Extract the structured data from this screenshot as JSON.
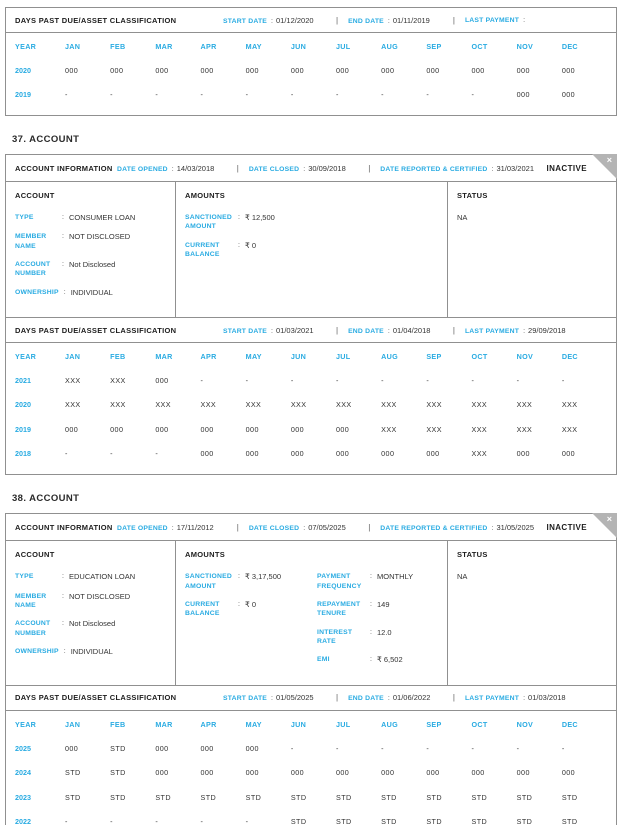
{
  "colors": {
    "accent": "#29abe2",
    "heading_text": "#1d1d1d",
    "value_text": "#333333",
    "border": "#909090",
    "corner_fold": "#b4b4b4"
  },
  "labels": {
    "dpd_title": "DAYS PAST DUE/ASSET CLASSIFICATION",
    "start_date": "START DATE",
    "end_date": "END DATE",
    "last_payment": "LAST PAYMENT",
    "account_information": "ACCOUNT INFORMATION",
    "date_opened": "DATE OPENED",
    "date_closed": "DATE CLOSED",
    "date_reported": "DATE REPORTED & CERTIFIED",
    "account": "ACCOUNT",
    "amounts": "AMOUNTS",
    "status": "STATUS",
    "type": "TYPE",
    "member_name": "MEMBER NAME",
    "account_number": "ACCOUNT NUMBER",
    "ownership": "OWNERSHIP",
    "sanctioned_amount": "SANCTIONED AMOUNT",
    "current_balance": "CURRENT BALANCE",
    "payment_frequency": "PAYMENT FREQUENCY",
    "repayment_tenure": "REPAYMENT TENURE",
    "interest_rate": "INTEREST RATE",
    "emi": "EMI",
    "year": "YEAR",
    "months": [
      "JAN",
      "FEB",
      "MAR",
      "APR",
      "MAY",
      "JUN",
      "JUL",
      "AUG",
      "SEP",
      "OCT",
      "NOV",
      "DEC"
    ],
    "colon": ":",
    "pipe": "|",
    "close": "×"
  },
  "top_dpd": {
    "start_date": "01/12/2020",
    "end_date": "01/11/2019",
    "last_payment": "",
    "rows": [
      {
        "year": "2020",
        "values": [
          "000",
          "000",
          "000",
          "000",
          "000",
          "000",
          "000",
          "000",
          "000",
          "000",
          "000",
          "000"
        ]
      },
      {
        "year": "2019",
        "values": [
          "-",
          "-",
          "-",
          "-",
          "-",
          "-",
          "-",
          "-",
          "-",
          "-",
          "000",
          "000"
        ]
      }
    ]
  },
  "accounts": [
    {
      "heading": "37. ACCOUNT",
      "badge": "INACTIVE",
      "info": {
        "date_opened": "14/03/2018",
        "date_closed": "30/09/2018",
        "date_reported": "31/03/2021"
      },
      "account": {
        "type": "CONSUMER LOAN",
        "member_name": "NOT DISCLOSED",
        "account_number": "Not Disclosed",
        "ownership": "INDIVIDUAL"
      },
      "amounts": {
        "sanctioned_amount": "₹ 12,500",
        "current_balance": "₹ 0"
      },
      "status": "NA",
      "dpd": {
        "start_date": "01/03/2021",
        "end_date": "01/04/2018",
        "last_payment": "29/09/2018",
        "rows": [
          {
            "year": "2021",
            "values": [
              "XXX",
              "XXX",
              "000",
              "-",
              "-",
              "-",
              "-",
              "-",
              "-",
              "-",
              "-",
              "-"
            ]
          },
          {
            "year": "2020",
            "values": [
              "XXX",
              "XXX",
              "XXX",
              "XXX",
              "XXX",
              "XXX",
              "XXX",
              "XXX",
              "XXX",
              "XXX",
              "XXX",
              "XXX"
            ]
          },
          {
            "year": "2019",
            "values": [
              "000",
              "000",
              "000",
              "000",
              "000",
              "000",
              "000",
              "XXX",
              "XXX",
              "XXX",
              "XXX",
              "XXX"
            ]
          },
          {
            "year": "2018",
            "values": [
              "-",
              "-",
              "-",
              "000",
              "000",
              "000",
              "000",
              "000",
              "000",
              "XXX",
              "000",
              "000"
            ]
          }
        ]
      }
    },
    {
      "heading": "38. ACCOUNT",
      "badge": "INACTIVE",
      "info": {
        "date_opened": "17/11/2012",
        "date_closed": "07/05/2025",
        "date_reported": "31/05/2025"
      },
      "account": {
        "type": "EDUCATION LOAN",
        "member_name": "NOT DISCLOSED",
        "account_number": "Not Disclosed",
        "ownership": "INDIVIDUAL"
      },
      "amounts": {
        "sanctioned_amount": "₹ 3,17,500",
        "current_balance": "₹ 0",
        "payment_frequency": "MONTHLY",
        "repayment_tenure": "149",
        "interest_rate": "12.0",
        "emi": "₹ 6,502"
      },
      "status": "NA",
      "dpd": {
        "start_date": "01/05/2025",
        "end_date": "01/06/2022",
        "last_payment": "01/03/2018",
        "rows": [
          {
            "year": "2025",
            "values": [
              "000",
              "STD",
              "000",
              "000",
              "000",
              "-",
              "-",
              "-",
              "-",
              "-",
              "-",
              "-"
            ]
          },
          {
            "year": "2024",
            "values": [
              "STD",
              "STD",
              "000",
              "000",
              "000",
              "000",
              "000",
              "000",
              "000",
              "000",
              "000",
              "000"
            ]
          },
          {
            "year": "2023",
            "values": [
              "STD",
              "STD",
              "STD",
              "STD",
              "STD",
              "STD",
              "STD",
              "STD",
              "STD",
              "STD",
              "STD",
              "STD"
            ]
          },
          {
            "year": "2022",
            "values": [
              "-",
              "-",
              "-",
              "-",
              "-",
              "STD",
              "STD",
              "STD",
              "STD",
              "STD",
              "STD",
              "STD"
            ]
          }
        ]
      }
    }
  ]
}
